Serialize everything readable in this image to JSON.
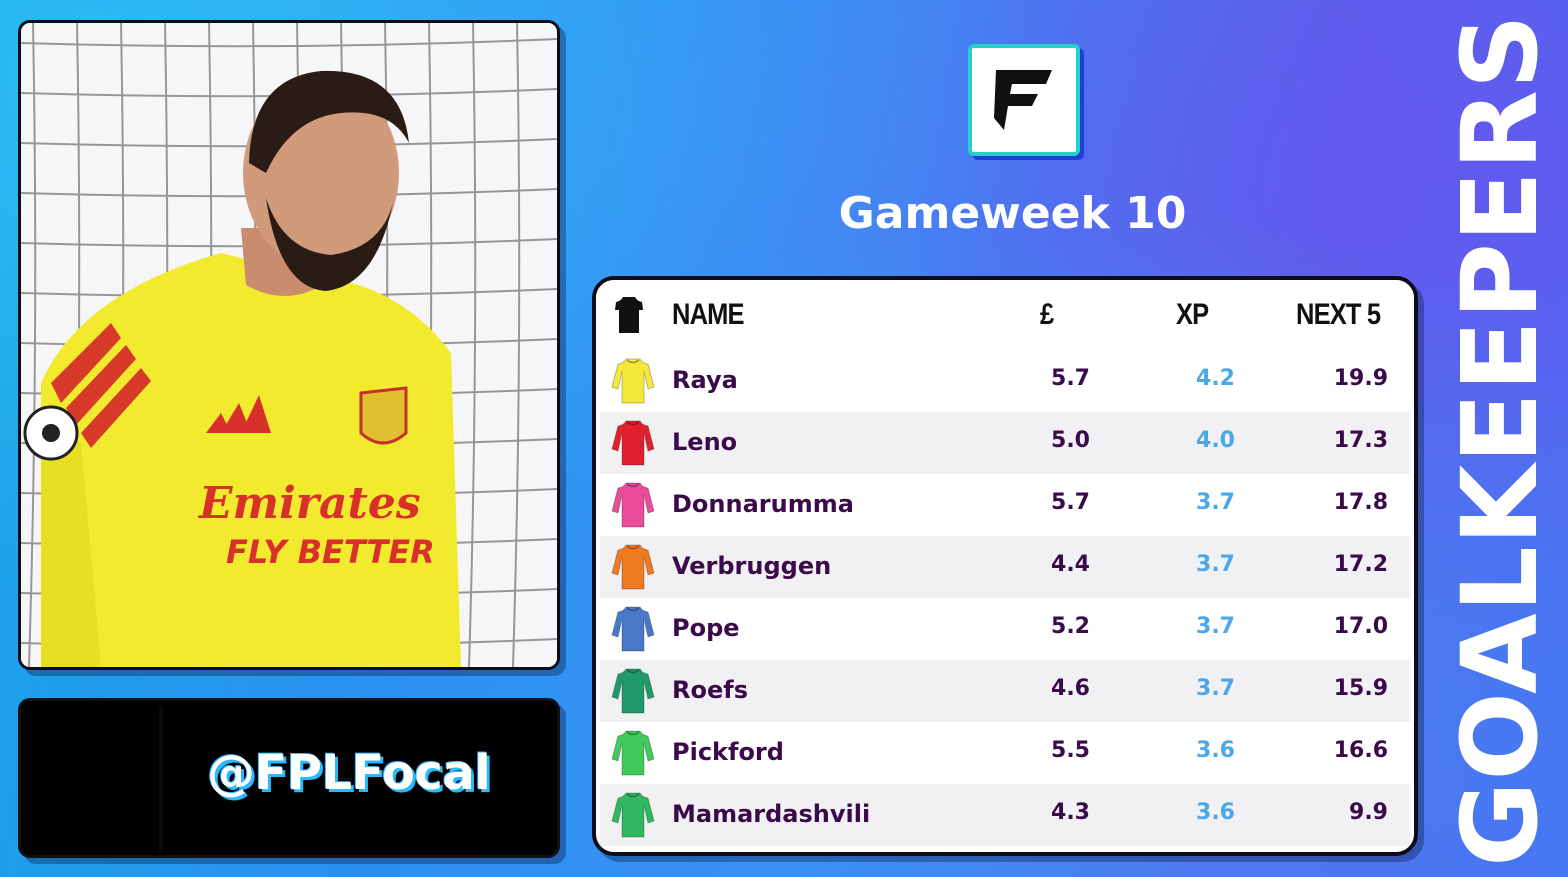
{
  "brand": {
    "handle": "@FPLFocal",
    "logo_icon": "fplfocal-f-logo-icon",
    "accent": "#27d0c8",
    "brand_blue": "#1f3fd6"
  },
  "header": {
    "gameweek": "Gameweek 10",
    "section_title": "GOALKEEPERS"
  },
  "table": {
    "columns": {
      "kit_icon": "shirt-icon",
      "name": "NAME",
      "price": "£",
      "xp": "XP",
      "next5": "NEXT 5"
    },
    "rows": [
      {
        "name": "Raya",
        "price": "5.7",
        "xp": "4.2",
        "next5": "19.9",
        "kit_color": "#f4e83a"
      },
      {
        "name": "Leno",
        "price": "5.0",
        "xp": "4.0",
        "next5": "17.3",
        "kit_color": "#e0202e"
      },
      {
        "name": "Donnarumma",
        "price": "5.7",
        "xp": "3.7",
        "next5": "17.8",
        "kit_color": "#ea4c9a"
      },
      {
        "name": "Verbruggen",
        "price": "4.4",
        "xp": "3.7",
        "next5": "17.2",
        "kit_color": "#f07a22"
      },
      {
        "name": "Pope",
        "price": "5.2",
        "xp": "3.7",
        "next5": "17.0",
        "kit_color": "#4a78c8"
      },
      {
        "name": "Roefs",
        "price": "4.6",
        "xp": "3.7",
        "next5": "15.9",
        "kit_color": "#1f9a6a"
      },
      {
        "name": "Pickford",
        "price": "5.5",
        "xp": "3.6",
        "next5": "16.6",
        "kit_color": "#3fca5a"
      },
      {
        "name": "Mamardashvili",
        "price": "4.3",
        "xp": "3.6",
        "next5": "9.9",
        "kit_color": "#2fb860"
      }
    ]
  },
  "colors": {
    "name_text": "#3b0a4a",
    "xp_text": "#4aa8e8"
  }
}
